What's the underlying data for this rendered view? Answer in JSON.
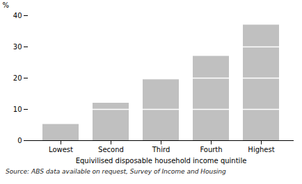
{
  "chart_data": {
    "type": "bar",
    "categories": [
      "Lowest",
      "Second",
      "Third",
      "Fourth",
      "Highest"
    ],
    "values": [
      5.2,
      12.0,
      19.5,
      27.0,
      37.0
    ],
    "color": "#c0c0c0",
    "xlabel": "Equivilised disposable household income quintile",
    "ylabel": "%",
    "ylim": [
      0,
      40
    ],
    "yticks": [
      0,
      10,
      20,
      30,
      40
    ],
    "grid": false,
    "annotations": [
      "Source: ABS data available on request, Survey of Income and Housing"
    ]
  }
}
